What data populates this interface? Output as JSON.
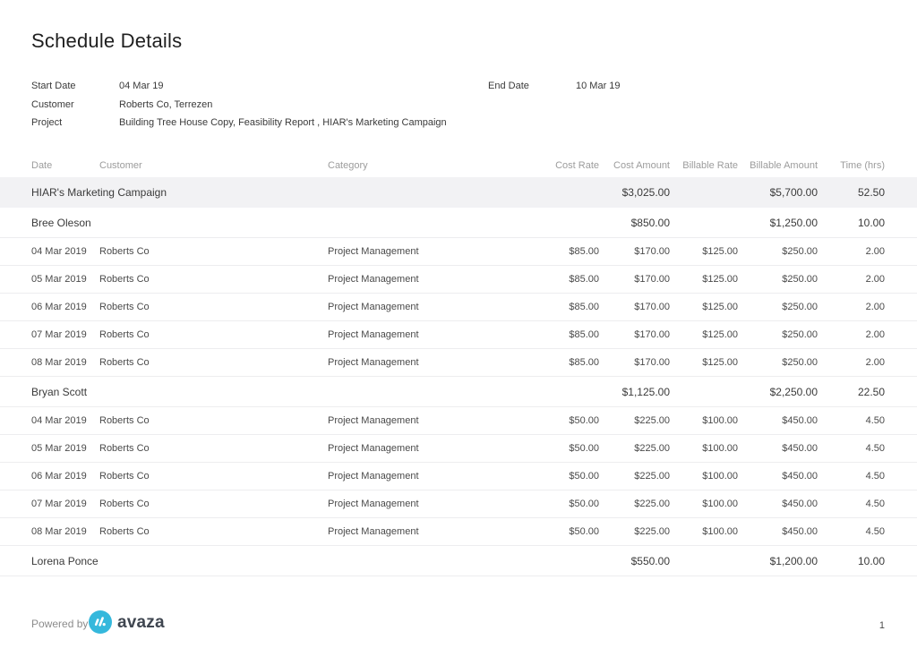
{
  "page": {
    "title": "Schedule Details",
    "page_number": "1",
    "powered_by_label": "Powered by",
    "brand_name": "avaza",
    "brand_color": "#35b8dc"
  },
  "filters": {
    "start_date": {
      "label": "Start Date",
      "value": "04 Mar 19"
    },
    "end_date": {
      "label": "End Date",
      "value": "10 Mar 19"
    },
    "customer": {
      "label": "Customer",
      "value": "Roberts Co, Terrezen"
    },
    "project": {
      "label": "Project",
      "value": "Building Tree House Copy, Feasibility Report , HIAR's Marketing Campaign"
    }
  },
  "table": {
    "columns": [
      "Date",
      "Customer",
      "Category",
      "Cost Rate",
      "Cost Amount",
      "Billable Rate",
      "Billable Amount",
      "Time (hrs)"
    ],
    "rows": [
      {
        "type": "project",
        "name": "HIAR's Marketing Campaign",
        "cost_rate": "",
        "cost_amount": "$3,025.00",
        "billable_rate": "",
        "billable_amount": "$5,700.00",
        "time": "52.50"
      },
      {
        "type": "person",
        "name": "Bree Oleson",
        "cost_rate": "",
        "cost_amount": "$850.00",
        "billable_rate": "",
        "billable_amount": "$1,250.00",
        "time": "10.00"
      },
      {
        "type": "detail",
        "date": "04 Mar 2019",
        "customer": "Roberts Co",
        "category": "Project Management",
        "cost_rate": "$85.00",
        "cost_amount": "$170.00",
        "billable_rate": "$125.00",
        "billable_amount": "$250.00",
        "time": "2.00"
      },
      {
        "type": "detail",
        "date": "05 Mar 2019",
        "customer": "Roberts Co",
        "category": "Project Management",
        "cost_rate": "$85.00",
        "cost_amount": "$170.00",
        "billable_rate": "$125.00",
        "billable_amount": "$250.00",
        "time": "2.00"
      },
      {
        "type": "detail",
        "date": "06 Mar 2019",
        "customer": "Roberts Co",
        "category": "Project Management",
        "cost_rate": "$85.00",
        "cost_amount": "$170.00",
        "billable_rate": "$125.00",
        "billable_amount": "$250.00",
        "time": "2.00"
      },
      {
        "type": "detail",
        "date": "07 Mar 2019",
        "customer": "Roberts Co",
        "category": "Project Management",
        "cost_rate": "$85.00",
        "cost_amount": "$170.00",
        "billable_rate": "$125.00",
        "billable_amount": "$250.00",
        "time": "2.00"
      },
      {
        "type": "detail",
        "date": "08 Mar 2019",
        "customer": "Roberts Co",
        "category": "Project Management",
        "cost_rate": "$85.00",
        "cost_amount": "$170.00",
        "billable_rate": "$125.00",
        "billable_amount": "$250.00",
        "time": "2.00"
      },
      {
        "type": "person",
        "name": "Bryan Scott",
        "cost_rate": "",
        "cost_amount": "$1,125.00",
        "billable_rate": "",
        "billable_amount": "$2,250.00",
        "time": "22.50"
      },
      {
        "type": "detail",
        "date": "04 Mar 2019",
        "customer": "Roberts Co",
        "category": "Project Management",
        "cost_rate": "$50.00",
        "cost_amount": "$225.00",
        "billable_rate": "$100.00",
        "billable_amount": "$450.00",
        "time": "4.50"
      },
      {
        "type": "detail",
        "date": "05 Mar 2019",
        "customer": "Roberts Co",
        "category": "Project Management",
        "cost_rate": "$50.00",
        "cost_amount": "$225.00",
        "billable_rate": "$100.00",
        "billable_amount": "$450.00",
        "time": "4.50"
      },
      {
        "type": "detail",
        "date": "06 Mar 2019",
        "customer": "Roberts Co",
        "category": "Project Management",
        "cost_rate": "$50.00",
        "cost_amount": "$225.00",
        "billable_rate": "$100.00",
        "billable_amount": "$450.00",
        "time": "4.50"
      },
      {
        "type": "detail",
        "date": "07 Mar 2019",
        "customer": "Roberts Co",
        "category": "Project Management",
        "cost_rate": "$50.00",
        "cost_amount": "$225.00",
        "billable_rate": "$100.00",
        "billable_amount": "$450.00",
        "time": "4.50"
      },
      {
        "type": "detail",
        "date": "08 Mar 2019",
        "customer": "Roberts Co",
        "category": "Project Management",
        "cost_rate": "$50.00",
        "cost_amount": "$225.00",
        "billable_rate": "$100.00",
        "billable_amount": "$450.00",
        "time": "4.50"
      },
      {
        "type": "person",
        "name": "Lorena Ponce",
        "cost_rate": "",
        "cost_amount": "$550.00",
        "billable_rate": "",
        "billable_amount": "$1,200.00",
        "time": "10.00"
      }
    ]
  }
}
